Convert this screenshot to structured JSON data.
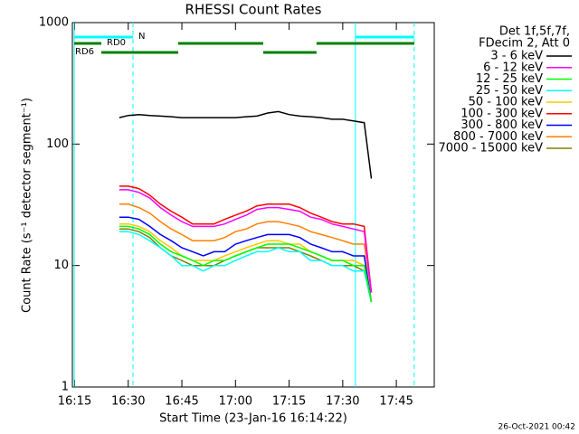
{
  "chart_data": {
    "type": "line",
    "title": "RHESSI Count Rates",
    "x_label": "Start Time (23-Jan-16 16:14:22)",
    "y_label": "Count Rate (s⁻¹ detector segment⁻¹)",
    "log_y": true,
    "xlim": [
      14.37,
      115.6
    ],
    "ylim": [
      1,
      1000
    ],
    "xticks": [
      {
        "value": 15,
        "label": "16:15"
      },
      {
        "value": 30,
        "label": "16:30"
      },
      {
        "value": 45,
        "label": "16:45"
      },
      {
        "value": 60,
        "label": "17:00"
      },
      {
        "value": 75,
        "label": "17:15"
      },
      {
        "value": 90,
        "label": "17:30"
      },
      {
        "value": 105,
        "label": "17:45"
      }
    ],
    "yticks": [
      1,
      10,
      100,
      1000
    ],
    "legend_title": [
      "Det 1f,5f,7f,",
      "FDecim 2, Att 0"
    ],
    "legend_position": "outside-right",
    "x": [
      27.5,
      30,
      33,
      36,
      39,
      42,
      45,
      48,
      51,
      54,
      57,
      60,
      63,
      66,
      69,
      72,
      75,
      78,
      81,
      84,
      87,
      90,
      93,
      96,
      98
    ],
    "series": [
      {
        "name": "3 - 6 keV",
        "color": "#000000",
        "values": [
          165,
          172,
          175,
          172,
          170,
          168,
          165,
          165,
          165,
          165,
          165,
          165,
          168,
          170,
          180,
          185,
          175,
          170,
          168,
          165,
          160,
          160,
          155,
          150,
          52
        ]
      },
      {
        "name": "6 - 12 keV",
        "color": "#ff00ff",
        "values": [
          42,
          42,
          40,
          36,
          30,
          26,
          23,
          21,
          21,
          21,
          22,
          24,
          26,
          29,
          30,
          30,
          29,
          28,
          25,
          24,
          22,
          21,
          20,
          19,
          6
        ]
      },
      {
        "name": "12 - 25 keV",
        "color": "#00ff00",
        "values": [
          21,
          21,
          20,
          18,
          15,
          13,
          12,
          11,
          10,
          11,
          11,
          12,
          13,
          14,
          15,
          15,
          15,
          14,
          13,
          12,
          11,
          11,
          10,
          10,
          5
        ]
      },
      {
        "name": "25 - 50 keV",
        "color": "#00ffff",
        "values": [
          19,
          19,
          18,
          16,
          14,
          12,
          10,
          10,
          9,
          10,
          10,
          11,
          12,
          13,
          13,
          14,
          13,
          13,
          11,
          11,
          10,
          10,
          9,
          9,
          5
        ]
      },
      {
        "name": "50 - 100 keV",
        "color": "#ffc800",
        "values": [
          22,
          22,
          21,
          19,
          16,
          14,
          12,
          11,
          11,
          11,
          12,
          13,
          14,
          15,
          16,
          16,
          15,
          15,
          13,
          12,
          11,
          11,
          11,
          10,
          5
        ]
      },
      {
        "name": "100 - 300 keV",
        "color": "#ff0000",
        "values": [
          45,
          45,
          43,
          38,
          32,
          28,
          25,
          22,
          22,
          22,
          24,
          26,
          28,
          31,
          32,
          32,
          32,
          30,
          27,
          25,
          23,
          22,
          22,
          21,
          6
        ]
      },
      {
        "name": "300 - 800 keV",
        "color": "#0000ff",
        "values": [
          25,
          25,
          24,
          21,
          18,
          16,
          14,
          13,
          12,
          13,
          13,
          15,
          16,
          17,
          18,
          18,
          18,
          17,
          15,
          14,
          13,
          13,
          12,
          12,
          5
        ]
      },
      {
        "name": "800 - 7000 keV",
        "color": "#ff8000",
        "values": [
          32,
          32,
          30,
          27,
          23,
          20,
          18,
          16,
          16,
          16,
          17,
          19,
          20,
          22,
          23,
          23,
          22,
          21,
          19,
          18,
          17,
          16,
          15,
          15,
          6
        ]
      },
      {
        "name": "7000 - 15000 keV",
        "color": "#808000",
        "values": [
          20,
          20,
          19,
          17,
          14,
          12,
          11,
          10,
          10,
          10,
          11,
          12,
          13,
          14,
          14,
          14,
          14,
          13,
          12,
          11,
          10,
          10,
          10,
          9,
          5
        ]
      }
    ],
    "markers": [
      {
        "x": 14.88,
        "style": "solid"
      },
      {
        "x": 31.32,
        "style": "dashed"
      },
      {
        "x": 93.55,
        "style": "solid"
      },
      {
        "x": 110.0,
        "style": "dashed"
      }
    ],
    "state_bars": [
      {
        "label": "N",
        "color": "#00ffff",
        "segments": [
          [
            14.88,
            31.32
          ],
          [
            93.55,
            110.0
          ]
        ]
      },
      {
        "label": "RD0",
        "color": "#008000",
        "segments": [
          [
            14.88,
            22.47
          ],
          [
            43.97,
            67.75
          ],
          [
            82.67,
            110.0
          ]
        ]
      },
      {
        "label": "RD6",
        "color": "#008000",
        "segments": [
          [
            22.47,
            43.97
          ],
          [
            67.75,
            82.67
          ]
        ]
      }
    ],
    "footer": "26-Oct-2021 00:42"
  }
}
